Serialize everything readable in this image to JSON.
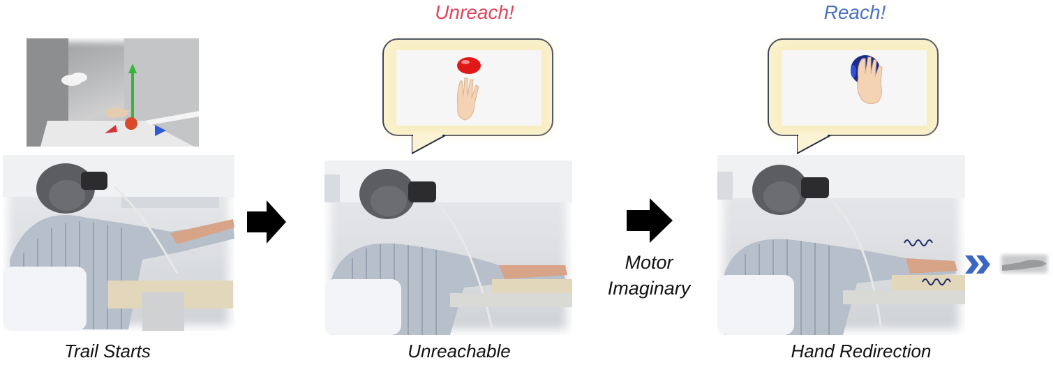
{
  "panels": [
    {
      "caption": "Trail Starts"
    },
    {
      "caption": "Unreachable",
      "bubble_label": "Unreach!"
    },
    {
      "caption": "Hand Redirection",
      "bubble_label": "Reach!"
    }
  ],
  "transition_label": "Motor\nImaginary",
  "colors": {
    "unreach": "#e0455c",
    "reach": "#4a72c4",
    "arrow": "#000000",
    "bubble_border": "#1f2a44",
    "bubble_fill": "#fbf3d3",
    "red_ball": "#e01818",
    "blue_ball": "#1c2b8a"
  }
}
